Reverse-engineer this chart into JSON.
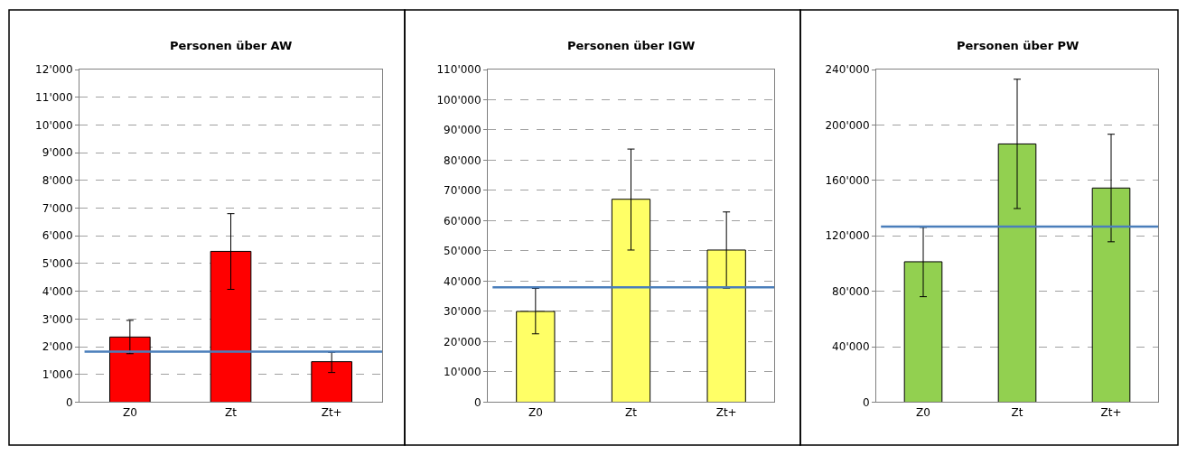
{
  "chart_data": [
    {
      "type": "bar",
      "title": "Personen über AW",
      "categories": [
        "Z0",
        "Zt",
        "Zt+"
      ],
      "values": [
        2350,
        5440,
        1460
      ],
      "colors": [
        "#ff0000",
        "#ff0000",
        "#ff0000"
      ],
      "errors": [
        [
          1750,
          2950
        ],
        [
          4070,
          6800
        ],
        [
          1070,
          1800
        ]
      ],
      "ylim": [
        0,
        12000
      ],
      "yticks": [
        {
          "value": 0,
          "label": "0"
        },
        {
          "value": 1000,
          "label": "1'000"
        },
        {
          "value": 2000,
          "label": "2'000"
        },
        {
          "value": 3000,
          "label": "3'000"
        },
        {
          "value": 4000,
          "label": "4'000"
        },
        {
          "value": 5000,
          "label": "5'000"
        },
        {
          "value": 6000,
          "label": "6'000"
        },
        {
          "value": 7000,
          "label": "7'000"
        },
        {
          "value": 8000,
          "label": "8'000"
        },
        {
          "value": 9000,
          "label": "9'000"
        },
        {
          "value": 10000,
          "label": "10'000"
        },
        {
          "value": 11000,
          "label": "11'000"
        },
        {
          "value": 12000,
          "label": "12'000"
        }
      ],
      "ref_lines": [
        {
          "axis": "y",
          "value": 1820,
          "color": "#4a7ebb"
        }
      ],
      "grid": "y"
    },
    {
      "type": "bar",
      "title": "Personen über IGW",
      "categories": [
        "Z0",
        "Zt",
        "Zt+"
      ],
      "values": [
        30000,
        67100,
        50300
      ],
      "colors": [
        "#ffff66",
        "#ffff66",
        "#ffff66"
      ],
      "errors": [
        [
          22600,
          37600
        ],
        [
          50300,
          83700
        ],
        [
          37700,
          62900
        ]
      ],
      "ylim": [
        0,
        110000
      ],
      "yticks": [
        {
          "value": 0,
          "label": "0"
        },
        {
          "value": 10000,
          "label": "10'000"
        },
        {
          "value": 20000,
          "label": "20'000"
        },
        {
          "value": 30000,
          "label": "30'000"
        },
        {
          "value": 40000,
          "label": "40'000"
        },
        {
          "value": 50000,
          "label": "50'000"
        },
        {
          "value": 60000,
          "label": "60'000"
        },
        {
          "value": 70000,
          "label": "70'000"
        },
        {
          "value": 80000,
          "label": "80'000"
        },
        {
          "value": 90000,
          "label": "90'000"
        },
        {
          "value": 100000,
          "label": "100'000"
        },
        {
          "value": 110000,
          "label": "110'000"
        }
      ],
      "ref_lines": [
        {
          "axis": "y",
          "value": 38000,
          "color": "#4a7ebb"
        }
      ],
      "grid": "y"
    },
    {
      "type": "bar",
      "title": "Personen über PW",
      "categories": [
        "Z0",
        "Zt",
        "Zt+"
      ],
      "values": [
        101300,
        186300,
        154500
      ],
      "colors": [
        "#92d050",
        "#92d050",
        "#92d050"
      ],
      "errors": [
        [
          76100,
          126100
        ],
        [
          139700,
          233000
        ],
        [
          115700,
          193300
        ]
      ],
      "ylim": [
        0,
        240000
      ],
      "yticks": [
        {
          "value": 0,
          "label": "0"
        },
        {
          "value": 40000,
          "label": "40'000"
        },
        {
          "value": 80000,
          "label": "80'000"
        },
        {
          "value": 120000,
          "label": "120'000"
        },
        {
          "value": 160000,
          "label": "160'000"
        },
        {
          "value": 200000,
          "label": "200'000"
        },
        {
          "value": 240000,
          "label": "240'000"
        }
      ],
      "ref_lines": [
        {
          "axis": "y",
          "value": 126600,
          "color": "#4a7ebb"
        }
      ],
      "grid": "y"
    }
  ]
}
